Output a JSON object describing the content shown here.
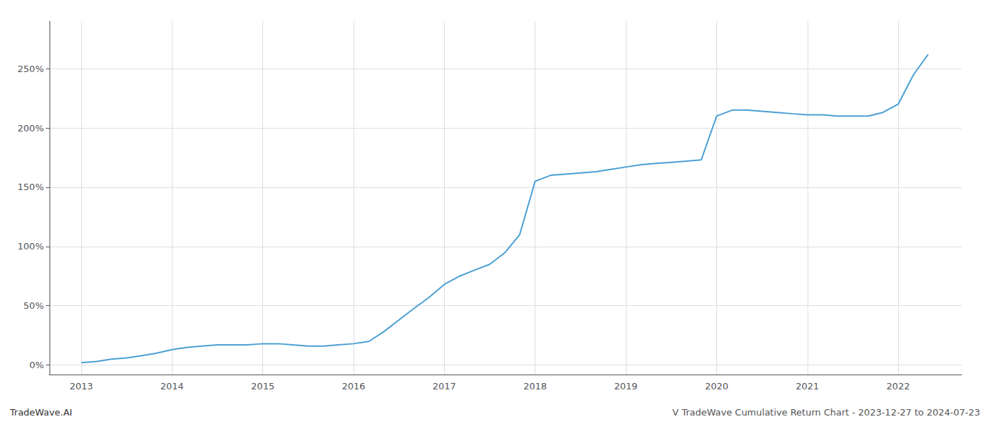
{
  "chart_data": {
    "type": "line",
    "annotations": [
      "TradeWave.AI",
      "V TradeWave Cumulative Return Chart - 2023-12-27 to 2024-07-23"
    ],
    "color": "#4a9fd4",
    "x": [
      2013.0,
      2013.17,
      2013.33,
      2013.5,
      2013.67,
      2013.83,
      2014.0,
      2014.17,
      2014.33,
      2014.5,
      2014.67,
      2014.83,
      2015.0,
      2015.17,
      2015.33,
      2015.5,
      2015.67,
      2015.83,
      2016.0,
      2016.17,
      2016.33,
      2016.5,
      2016.67,
      2016.83,
      2017.0,
      2017.17,
      2017.33,
      2017.5,
      2017.67,
      2017.83,
      2018.0,
      2018.17,
      2018.33,
      2018.5,
      2018.67,
      2018.83,
      2019.0,
      2019.17,
      2019.33,
      2019.5,
      2019.67,
      2019.83,
      2020.0,
      2020.17,
      2020.33,
      2020.5,
      2020.67,
      2020.83,
      2021.0,
      2021.17,
      2021.33,
      2021.5,
      2021.67,
      2021.83,
      2022.0,
      2022.17,
      2022.33
    ],
    "values": [
      2,
      3,
      5,
      6,
      8,
      10,
      13,
      15,
      16,
      17,
      17,
      17,
      18,
      18,
      17,
      16,
      16,
      17,
      18,
      20,
      28,
      38,
      48,
      57,
      68,
      75,
      80,
      85,
      95,
      110,
      155,
      160,
      161,
      162,
      163,
      165,
      167,
      169,
      170,
      171,
      172,
      173,
      210,
      215,
      215,
      214,
      213,
      212,
      211,
      211,
      210,
      210,
      210,
      213,
      220,
      245,
      262
    ],
    "xlim": [
      2012.65,
      2022.7
    ],
    "xticks": [
      2013,
      2014,
      2015,
      2016,
      2017,
      2018,
      2019,
      2020,
      2021,
      2022
    ],
    "ylim": [
      -8,
      290
    ],
    "yticks": [
      {
        "value": 0,
        "label": "0%"
      },
      {
        "value": 50,
        "label": "50%"
      },
      {
        "value": 100,
        "label": "100%"
      },
      {
        "value": 150,
        "label": "150%"
      },
      {
        "value": 200,
        "label": "200%"
      },
      {
        "value": 250,
        "label": "250%"
      }
    ],
    "grid": true
  }
}
